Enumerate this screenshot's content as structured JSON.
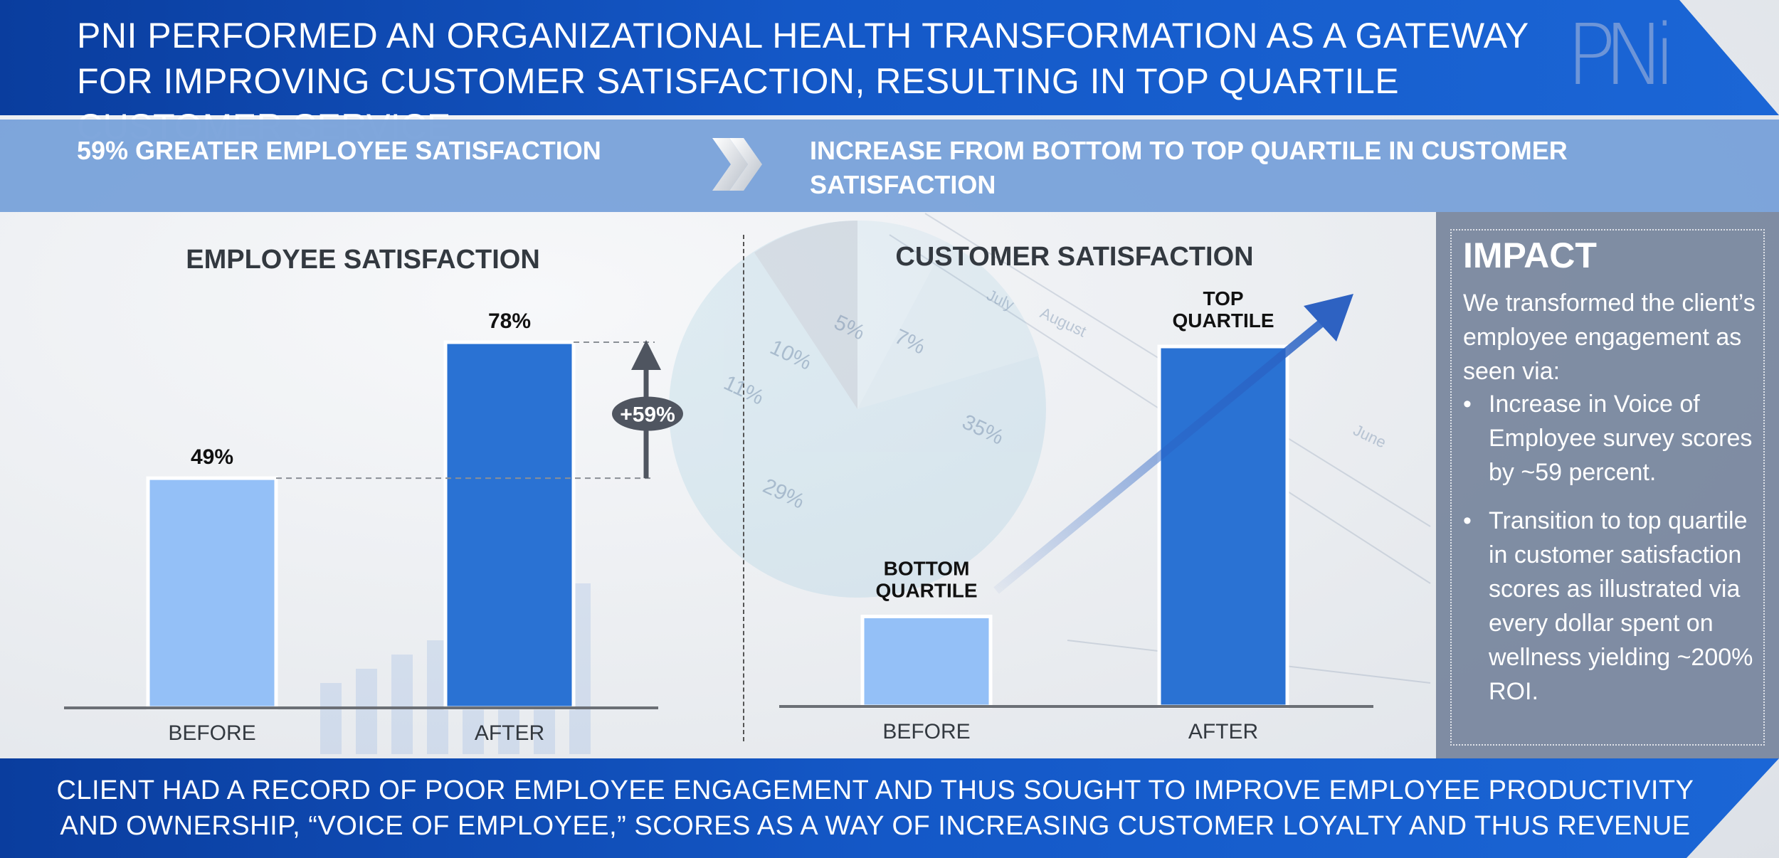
{
  "header": {
    "title": "PNI PERFORMED AN ORGANIZATIONAL HEALTH TRANSFORMATION AS A GATEWAY FOR IMPROVING CUSTOMER SATISFACTION, RESULTING IN TOP QUARTILE CUSTOMER SERVICE",
    "logo_text": "PNi"
  },
  "band": {
    "left": "59% GREATER  EMPLOYEE SATISFACTION",
    "right": "INCREASE FROM BOTTOM TO TOP QUARTILE IN CUSTOMER SATISFACTION",
    "chevron_icon": "double-chevron-right-icon"
  },
  "background": {
    "pie_labels": [
      "10%",
      "5%",
      "7%",
      "11%",
      "35%",
      "29%"
    ],
    "month_labels": [
      "July",
      "August",
      "June"
    ]
  },
  "chart_data": [
    {
      "type": "bar",
      "title": "EMPLOYEE SATISFACTION",
      "categories": [
        "BEFORE",
        "AFTER"
      ],
      "values": [
        49,
        78
      ],
      "value_labels": [
        "49%",
        "78%"
      ],
      "annotation": "+59%",
      "ylim": [
        0,
        80
      ],
      "colors": [
        "#94c0f7",
        "#2a72d3"
      ]
    },
    {
      "type": "bar",
      "title": "CUSTOMER SATISFACTION",
      "categories": [
        "BEFORE",
        "AFTER"
      ],
      "values": [
        1,
        4
      ],
      "value_labels": [
        "BOTTOM QUARTILE",
        "TOP QUARTILE"
      ],
      "ylim": [
        0,
        5
      ],
      "colors": [
        "#94c0f7",
        "#2a72d3"
      ]
    }
  ],
  "impact": {
    "title": "IMPACT",
    "intro": "We transformed the client’s employee engagement as seen via:",
    "bullets": [
      "Increase in Voice of Employee survey scores by ~59 percent.",
      "Transition to top quartile in customer satisfaction scores as illustrated via every dollar spent on wellness yielding ~200% ROI."
    ]
  },
  "footer": {
    "text": "CLIENT HAD A RECORD OF POOR EMPLOYEE ENGAGEMENT AND THUS SOUGHT TO IMPROVE EMPLOYEE PRODUCTIVITY AND OWNERSHIP, “VOICE OF EMPLOYEE,” SCORES AS A WAY OF INCREASING CUSTOMER LOYALTY AND THUS REVENUE"
  }
}
